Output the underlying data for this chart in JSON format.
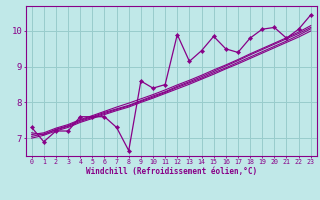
{
  "xlabel": "Windchill (Refroidissement éolien,°C)",
  "bg_color": "#c0e8e8",
  "grid_color": "#98cccc",
  "line_color": "#880088",
  "spine_color": "#880088",
  "xlim": [
    -0.5,
    23.5
  ],
  "ylim": [
    6.5,
    10.7
  ],
  "yticks": [
    7,
    8,
    9,
    10
  ],
  "xticks": [
    0,
    1,
    2,
    3,
    4,
    5,
    6,
    7,
    8,
    9,
    10,
    11,
    12,
    13,
    14,
    15,
    16,
    17,
    18,
    19,
    20,
    21,
    22,
    23
  ],
  "main_y": [
    7.3,
    6.9,
    7.2,
    7.2,
    7.6,
    7.6,
    7.6,
    7.3,
    6.65,
    8.6,
    8.4,
    8.5,
    9.9,
    9.15,
    9.45,
    9.85,
    9.5,
    9.4,
    9.8,
    10.05,
    10.1,
    9.8,
    10.05,
    10.45
  ],
  "smooth1_y": [
    7.15,
    7.1,
    7.25,
    7.35,
    7.5,
    7.6,
    7.72,
    7.82,
    7.92,
    8.05,
    8.18,
    8.3,
    8.45,
    8.58,
    8.72,
    8.87,
    9.02,
    9.17,
    9.33,
    9.48,
    9.63,
    9.78,
    9.93,
    10.1
  ],
  "smooth2_y": [
    7.1,
    7.15,
    7.28,
    7.38,
    7.52,
    7.63,
    7.75,
    7.87,
    7.98,
    8.1,
    8.22,
    8.35,
    8.49,
    8.62,
    8.76,
    8.91,
    9.05,
    9.2,
    9.36,
    9.51,
    9.66,
    9.81,
    9.97,
    10.15
  ],
  "smooth3_y": [
    7.05,
    7.12,
    7.23,
    7.33,
    7.47,
    7.58,
    7.69,
    7.8,
    7.9,
    8.03,
    8.15,
    8.28,
    8.42,
    8.55,
    8.68,
    8.83,
    8.97,
    9.12,
    9.27,
    9.42,
    9.57,
    9.72,
    9.88,
    10.06
  ],
  "smooth4_y": [
    7.0,
    7.08,
    7.2,
    7.3,
    7.44,
    7.55,
    7.66,
    7.77,
    7.87,
    8.0,
    8.12,
    8.25,
    8.38,
    8.51,
    8.65,
    8.79,
    8.94,
    9.08,
    9.23,
    9.38,
    9.53,
    9.68,
    9.83,
    10.0
  ]
}
